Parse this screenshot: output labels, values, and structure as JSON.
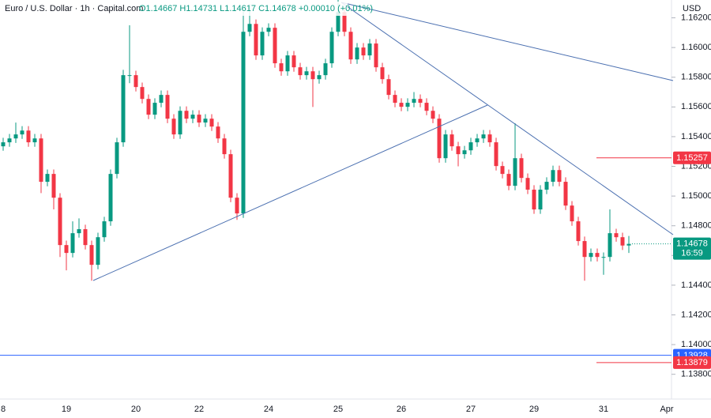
{
  "chart_data": {
    "type": "candlestick",
    "title": "Euro / U.S. Dollar · 1h · Capital.com",
    "ohlc_text": "O1.14667 H1.14731 L1.14617 C1.14678 +0.00010 (+0.01%)",
    "y_axis_label": "USD",
    "up_color": "#089981",
    "down_color": "#f23645",
    "categories": [
      "8",
      null,
      null,
      null,
      null,
      null,
      null,
      null,
      null,
      null,
      "19",
      null,
      null,
      null,
      null,
      null,
      null,
      null,
      null,
      null,
      null,
      "20",
      null,
      null,
      null,
      null,
      null,
      null,
      null,
      null,
      null,
      "22",
      null,
      null,
      null,
      null,
      null,
      null,
      null,
      null,
      null,
      null,
      "24",
      null,
      null,
      null,
      null,
      null,
      null,
      null,
      null,
      null,
      null,
      "25",
      null,
      null,
      null,
      null,
      null,
      null,
      null,
      null,
      null,
      "26",
      null,
      null,
      null,
      null,
      null,
      null,
      null,
      null,
      null,
      null,
      "27",
      null,
      null,
      null,
      null,
      null,
      null,
      null,
      null,
      null,
      "29",
      null,
      null,
      null,
      null,
      null,
      null,
      null,
      null,
      null,
      null,
      "31",
      null,
      null,
      null,
      null,
      null,
      null,
      null,
      null,
      null,
      "Apr"
    ],
    "open": [
      1.15335,
      1.15362,
      1.15388,
      1.15415,
      1.15441,
      1.15362,
      1.15388,
      1.15096,
      1.15149,
      1.14989,
      1.1467,
      1.14617,
      1.1475,
      1.14777,
      1.1467,
      1.14537,
      1.14723,
      1.1483,
      1.15149,
      1.15362,
      1.15814,
      1.15814,
      1.15734,
      1.15654,
      1.15548,
      1.15628,
      1.15681,
      1.15521,
      1.15415,
      1.15574,
      1.15521,
      1.15548,
      1.15495,
      1.15521,
      1.15468,
      1.15388,
      1.15282,
      1.14989,
      1.14883,
      1.16106,
      1.16159,
      1.15947,
      1.16106,
      1.16133,
      1.15894,
      1.1584,
      1.15947,
      1.15867,
      1.15814,
      1.1584,
      1.15787,
      1.15814,
      1.15894,
      1.16106,
      1.16239,
      1.16106,
      1.1592,
      1.16,
      1.15947,
      1.16027,
      1.15867,
      1.15787,
      1.15681,
      1.15628,
      1.15601,
      1.15628,
      1.15654,
      1.15628,
      1.15574,
      1.15521,
      1.15255,
      1.15415,
      1.15335,
      1.15282,
      1.15308,
      1.15362,
      1.15388,
      1.15415,
      1.15362,
      1.15202,
      1.15149,
      1.15069,
      1.15255,
      1.15122,
      1.15043,
      1.1491,
      1.15043,
      1.15096,
      1.15175,
      1.15096,
      1.14936,
      1.1483,
      1.14697,
      1.1459,
      1.14617,
      1.1459,
      1.1459,
      1.1475,
      1.14723,
      1.14667,
      null,
      null,
      null,
      null,
      null,
      null
    ],
    "high": [
      1.15392,
      1.15418,
      1.15495,
      1.15471,
      1.15471,
      1.15418,
      1.15418,
      1.15179,
      1.15179,
      1.15019,
      1.147,
      1.1483,
      1.1485,
      1.14807,
      1.147,
      1.14753,
      1.1486,
      1.15179,
      1.15392,
      1.1585,
      1.1615,
      1.15844,
      1.15764,
      1.15684,
      1.15658,
      1.15711,
      1.15711,
      1.15551,
      1.15604,
      1.15604,
      1.15578,
      1.15578,
      1.15551,
      1.15551,
      1.15498,
      1.15418,
      1.15312,
      1.15019,
      1.1624,
      1.1629,
      1.16189,
      1.16136,
      1.16163,
      1.16163,
      1.15924,
      1.15977,
      1.15977,
      1.15897,
      1.1587,
      1.1587,
      1.15844,
      1.15924,
      1.16136,
      1.1632,
      1.16269,
      1.16136,
      1.1603,
      1.1603,
      1.16057,
      1.16057,
      1.15897,
      1.15817,
      1.15711,
      1.15658,
      1.15658,
      1.157,
      1.15684,
      1.15658,
      1.15604,
      1.15551,
      1.15445,
      1.15445,
      1.15365,
      1.15338,
      1.15392,
      1.15418,
      1.15445,
      1.15445,
      1.15392,
      1.15232,
      1.15179,
      1.1549,
      1.15285,
      1.15152,
      1.15073,
      1.15073,
      1.15126,
      1.15205,
      1.15205,
      1.15126,
      1.14966,
      1.1486,
      1.14727,
      1.14647,
      1.14647,
      1.1462,
      1.1491,
      1.1478,
      1.14753,
      1.14731,
      null,
      null,
      null,
      null,
      null,
      null
    ],
    "low": [
      1.15305,
      1.15332,
      1.15358,
      1.15385,
      1.15332,
      1.15332,
      1.1502,
      1.15066,
      1.1491,
      1.1459,
      1.145,
      1.14587,
      1.1472,
      1.1464,
      1.1443,
      1.14507,
      1.14693,
      1.148,
      1.15119,
      1.15332,
      1.1576,
      1.15704,
      1.15624,
      1.15518,
      1.15518,
      1.15598,
      1.15491,
      1.15385,
      1.15385,
      1.15491,
      1.15491,
      1.15465,
      1.15465,
      1.15438,
      1.15358,
      1.15252,
      1.14959,
      1.1484,
      1.14853,
      1.16076,
      1.15917,
      1.15917,
      1.16076,
      1.15864,
      1.1581,
      1.1581,
      1.15837,
      1.15784,
      1.15784,
      1.156,
      1.15757,
      1.15784,
      1.15864,
      1.16076,
      1.16076,
      1.1589,
      1.1589,
      1.15917,
      1.15917,
      1.15837,
      1.15757,
      1.15651,
      1.15598,
      1.15571,
      1.15571,
      1.15598,
      1.15598,
      1.15544,
      1.15491,
      1.15225,
      1.15225,
      1.15305,
      1.152,
      1.15252,
      1.15278,
      1.15332,
      1.15358,
      1.15332,
      1.15172,
      1.15119,
      1.15039,
      1.15039,
      1.15092,
      1.15013,
      1.1488,
      1.1488,
      1.15013,
      1.15066,
      1.15066,
      1.14906,
      1.148,
      1.14667,
      1.1443,
      1.1456,
      1.1456,
      1.1447,
      1.1456,
      1.14693,
      1.14637,
      1.14617,
      null,
      null,
      null,
      null,
      null,
      null
    ],
    "close": [
      1.15362,
      1.15388,
      1.15415,
      1.15441,
      1.15362,
      1.15388,
      1.15096,
      1.15149,
      1.14989,
      1.1467,
      1.14617,
      1.1475,
      1.14777,
      1.1467,
      1.14537,
      1.14723,
      1.1483,
      1.15149,
      1.15362,
      1.15814,
      1.15814,
      1.15734,
      1.15654,
      1.15548,
      1.15628,
      1.15681,
      1.15521,
      1.15415,
      1.15574,
      1.15521,
      1.15548,
      1.15495,
      1.15521,
      1.15468,
      1.15388,
      1.15282,
      1.14989,
      1.14883,
      1.16106,
      1.16159,
      1.15947,
      1.16106,
      1.16133,
      1.15894,
      1.1584,
      1.15947,
      1.15867,
      1.15814,
      1.1584,
      1.15787,
      1.15814,
      1.15894,
      1.16106,
      1.16239,
      1.16106,
      1.1592,
      1.16,
      1.15947,
      1.16027,
      1.15867,
      1.15787,
      1.15681,
      1.15628,
      1.15601,
      1.15628,
      1.15654,
      1.15628,
      1.15574,
      1.15521,
      1.15255,
      1.15415,
      1.15335,
      1.15282,
      1.15308,
      1.15362,
      1.15388,
      1.15415,
      1.15362,
      1.15202,
      1.15149,
      1.15069,
      1.15255,
      1.15122,
      1.15043,
      1.1491,
      1.15043,
      1.15096,
      1.15175,
      1.15096,
      1.14936,
      1.1483,
      1.14697,
      1.1459,
      1.14617,
      1.1459,
      1.1459,
      1.1475,
      1.14723,
      1.14667,
      1.14678,
      null,
      null,
      null,
      null,
      null,
      null
    ],
    "ylim": [
      1.1366,
      1.1632
    ],
    "yticks": [
      {
        "value": 1.162,
        "label": "1.16200"
      },
      {
        "value": 1.16,
        "label": "1.16000"
      },
      {
        "value": 1.158,
        "label": "1.15800"
      },
      {
        "value": 1.156,
        "label": "1.15600"
      },
      {
        "value": 1.154,
        "label": "1.15400"
      },
      {
        "value": 1.152,
        "label": "1.15200"
      },
      {
        "value": 1.15,
        "label": "1.15000"
      },
      {
        "value": 1.148,
        "label": "1.14800"
      },
      {
        "value": 1.146,
        "label": "1.14600"
      },
      {
        "value": 1.144,
        "label": "1.14400"
      },
      {
        "value": 1.142,
        "label": "1.14200"
      },
      {
        "value": 1.14,
        "label": "1.14000"
      },
      {
        "value": 1.138,
        "label": "1.13800"
      }
    ],
    "price_levels": [
      {
        "value": 1.15257,
        "color": "#f23645",
        "full_width": false
      },
      {
        "value": 1.13928,
        "color": "#2962ff",
        "full_width": true
      },
      {
        "value": 1.13879,
        "color": "#f23645",
        "full_width": false
      }
    ],
    "last_price": {
      "value": 1.14678,
      "countdown": "16:59",
      "color": "#089981"
    }
  }
}
